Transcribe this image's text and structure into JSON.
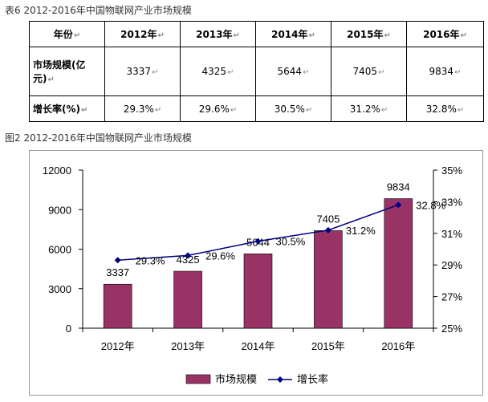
{
  "table_caption": "表6   2012-2016年中国物联网产业市场规模",
  "chart_caption": "图2   2012-2016年中国物联网产业市场规模",
  "table": {
    "headers": [
      "年份",
      "2012年",
      "2013年",
      "2014年",
      "2015年",
      "2016年"
    ],
    "rows": [
      {
        "label": "市场规模(亿元)",
        "values": [
          "3337",
          "4325",
          "5644",
          "7405",
          "9834"
        ]
      },
      {
        "label": "增长率(%)",
        "values": [
          "29.3%",
          "29.6%",
          "30.5%",
          "31.2%",
          "32.8%"
        ]
      }
    ],
    "cell_marker": "↵"
  },
  "chart_data": {
    "type": "bar+line",
    "categories": [
      "2012年",
      "2013年",
      "2014年",
      "2015年",
      "2016年"
    ],
    "series": [
      {
        "name": "市场规模",
        "type": "bar",
        "axis": "left",
        "values": [
          3337,
          4325,
          5644,
          7405,
          9834
        ],
        "labels": [
          "3337",
          "4325",
          "5644",
          "7405",
          "9834"
        ],
        "color": "#993366"
      },
      {
        "name": "增长率",
        "type": "line",
        "axis": "right",
        "values": [
          29.3,
          29.6,
          30.5,
          31.2,
          32.8
        ],
        "labels": [
          "29.3%",
          "29.6%",
          "30.5%",
          "31.2%",
          "32.8%"
        ],
        "color": "#000080"
      }
    ],
    "y_left": {
      "min": 0,
      "max": 12000,
      "ticks": [
        "0",
        "3000",
        "6000",
        "9000",
        "12000"
      ]
    },
    "y_right": {
      "min": 25,
      "max": 35,
      "ticks": [
        "25%",
        "27%",
        "29%",
        "31%",
        "33%",
        "35%"
      ]
    },
    "legend": {
      "position": "bottom"
    },
    "grid": false
  }
}
